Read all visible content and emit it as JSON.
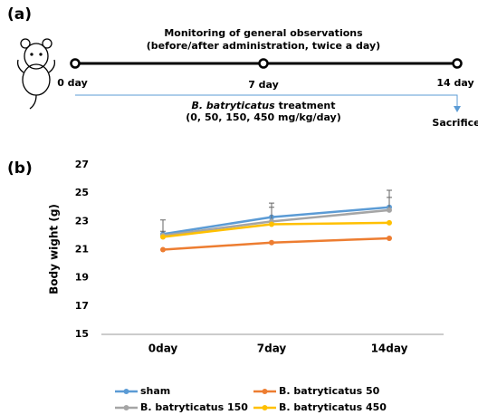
{
  "figure_a": {
    "label": "(a)",
    "title_line1": "Monitoring of general observations",
    "title_line2": "(before/after administration, twice a day)",
    "timepoints": [
      "0 day",
      "7 day",
      "14 day"
    ],
    "treatment_italic": "B. batryticatus",
    "treatment_rest": "treatment",
    "dose": "(0, 50, 150, 450 mg/kg/day)",
    "endpoint": "Sacrifice"
  },
  "chart_label": "(b)",
  "chart_data": {
    "type": "line",
    "y_label": "Body wight (g)",
    "categories": [
      "0day",
      "7day",
      "14day"
    ],
    "series": [
      {
        "name": "sham",
        "color": "#5b9bd5",
        "values": [
          22.1,
          23.3,
          24.0
        ],
        "errors": [
          1.0,
          1.0,
          1.2
        ]
      },
      {
        "name": "B. batryticatus 50",
        "color": "#ed7d31",
        "values": [
          21.0,
          21.5,
          21.8
        ]
      },
      {
        "name": "B. batryticatus 150",
        "color": "#a5a5a5",
        "values": [
          22.0,
          23.0,
          23.8
        ],
        "errors": [
          0.3,
          1.0,
          0.9
        ]
      },
      {
        "name": "B. batryticatus 450",
        "color": "#ffc000",
        "values": [
          21.9,
          22.8,
          22.9
        ]
      }
    ],
    "ylim": [
      15,
      27
    ],
    "yticks": [
      15,
      17,
      19,
      21,
      23,
      25,
      27
    ],
    "grid": false
  }
}
